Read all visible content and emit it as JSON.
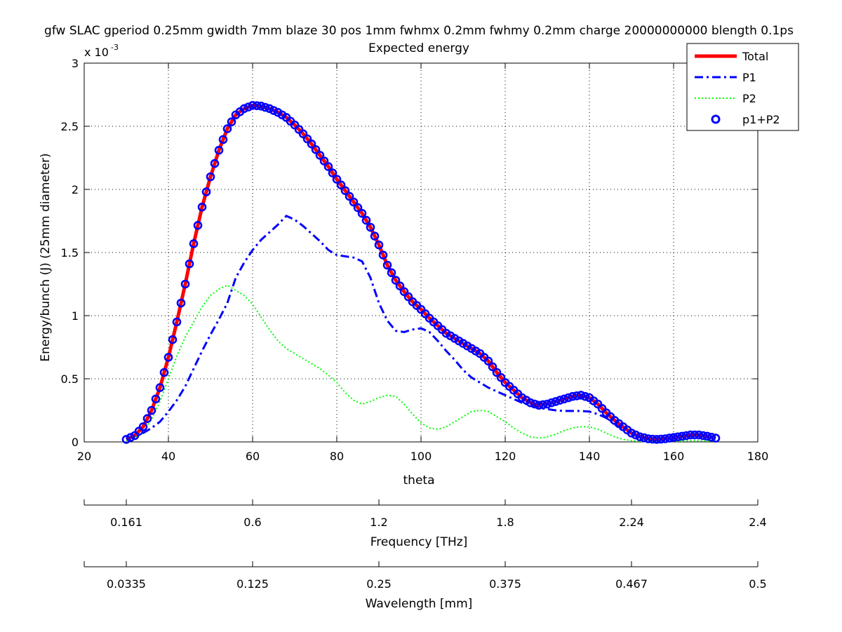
{
  "chart_data": {
    "type": "line",
    "title": "gfw SLAC gperiod 0.25mm gwidth 7mm blaze 30 pos 1mm fwhmx 0.2mm fwhmy 0.2mm charge 20000000000 blength 0.1ps",
    "subtitle": "Expected energy",
    "xlabel": "theta",
    "ylabel": "Energy/bunch (J) (25mm diameter)",
    "y_exponent": "x 10",
    "y_exponent_power": "-3",
    "xlim": [
      20,
      180
    ],
    "ylim": [
      0,
      0.003
    ],
    "grid": true,
    "legend_position": "top-right",
    "x_ticks": [
      "20",
      "40",
      "60",
      "80",
      "100",
      "120",
      "140",
      "160",
      "180"
    ],
    "y_ticks": [
      "0",
      "0.5",
      "1",
      "1.5",
      "2",
      "2.5",
      "3"
    ],
    "secondary_axes": [
      {
        "label": "Frequency [THz]",
        "tick_theta": [
          30,
          60,
          90,
          120,
          150,
          180
        ],
        "tick_labels": [
          "0.161",
          "0.6",
          "1.2",
          "1.8",
          "2.24",
          "2.4"
        ]
      },
      {
        "label": "Wavelength [mm]",
        "tick_theta": [
          30,
          60,
          90,
          120,
          150,
          180
        ],
        "tick_labels": [
          "0.0335",
          "0.125",
          "0.25",
          "0.375",
          "0.467",
          "0.5"
        ]
      }
    ],
    "series": [
      {
        "name": "Total",
        "color": "#ff0000",
        "style": "solid",
        "points": [
          [
            30,
            0.02
          ],
          [
            32,
            0.05
          ],
          [
            34,
            0.12
          ],
          [
            36,
            0.25
          ],
          [
            38,
            0.43
          ],
          [
            40,
            0.67
          ],
          [
            42,
            0.95
          ],
          [
            44,
            1.25
          ],
          [
            46,
            1.57
          ],
          [
            48,
            1.86
          ],
          [
            50,
            2.1
          ],
          [
            52,
            2.31
          ],
          [
            54,
            2.48
          ],
          [
            56,
            2.59
          ],
          [
            58,
            2.64
          ],
          [
            60,
            2.665
          ],
          [
            62,
            2.66
          ],
          [
            64,
            2.64
          ],
          [
            66,
            2.61
          ],
          [
            68,
            2.57
          ],
          [
            70,
            2.51
          ],
          [
            72,
            2.44
          ],
          [
            74,
            2.36
          ],
          [
            76,
            2.27
          ],
          [
            78,
            2.18
          ],
          [
            80,
            2.08
          ],
          [
            82,
            1.99
          ],
          [
            84,
            1.9
          ],
          [
            86,
            1.81
          ],
          [
            88,
            1.7
          ],
          [
            90,
            1.56
          ],
          [
            92,
            1.4
          ],
          [
            94,
            1.28
          ],
          [
            96,
            1.19
          ],
          [
            98,
            1.11
          ],
          [
            100,
            1.05
          ],
          [
            102,
            0.98
          ],
          [
            104,
            0.92
          ],
          [
            106,
            0.86
          ],
          [
            108,
            0.82
          ],
          [
            110,
            0.78
          ],
          [
            112,
            0.74
          ],
          [
            114,
            0.7
          ],
          [
            116,
            0.64
          ],
          [
            118,
            0.55
          ],
          [
            120,
            0.47
          ],
          [
            122,
            0.41
          ],
          [
            124,
            0.35
          ],
          [
            126,
            0.31
          ],
          [
            128,
            0.29
          ],
          [
            130,
            0.3
          ],
          [
            132,
            0.32
          ],
          [
            134,
            0.34
          ],
          [
            136,
            0.36
          ],
          [
            138,
            0.37
          ],
          [
            140,
            0.35
          ],
          [
            142,
            0.3
          ],
          [
            144,
            0.23
          ],
          [
            146,
            0.17
          ],
          [
            148,
            0.12
          ],
          [
            150,
            0.07
          ],
          [
            152,
            0.04
          ],
          [
            154,
            0.025
          ],
          [
            156,
            0.02
          ],
          [
            158,
            0.025
          ],
          [
            160,
            0.035
          ],
          [
            162,
            0.045
          ],
          [
            164,
            0.055
          ],
          [
            166,
            0.055
          ],
          [
            168,
            0.045
          ],
          [
            170,
            0.03
          ]
        ]
      },
      {
        "name": "P1",
        "color": "#0000ff",
        "style": "dashdot",
        "points": [
          [
            30,
            0.02
          ],
          [
            32,
            0.04
          ],
          [
            34,
            0.07
          ],
          [
            36,
            0.11
          ],
          [
            38,
            0.16
          ],
          [
            40,
            0.24
          ],
          [
            42,
            0.33
          ],
          [
            44,
            0.44
          ],
          [
            46,
            0.58
          ],
          [
            48,
            0.72
          ],
          [
            50,
            0.85
          ],
          [
            52,
            0.97
          ],
          [
            54,
            1.1
          ],
          [
            56,
            1.3
          ],
          [
            58,
            1.42
          ],
          [
            60,
            1.52
          ],
          [
            62,
            1.6
          ],
          [
            64,
            1.66
          ],
          [
            66,
            1.72
          ],
          [
            68,
            1.79
          ],
          [
            70,
            1.76
          ],
          [
            72,
            1.71
          ],
          [
            74,
            1.65
          ],
          [
            76,
            1.59
          ],
          [
            78,
            1.52
          ],
          [
            80,
            1.48
          ],
          [
            82,
            1.47
          ],
          [
            84,
            1.46
          ],
          [
            86,
            1.43
          ],
          [
            88,
            1.3
          ],
          [
            90,
            1.1
          ],
          [
            92,
            0.96
          ],
          [
            94,
            0.88
          ],
          [
            96,
            0.87
          ],
          [
            98,
            0.89
          ],
          [
            100,
            0.9
          ],
          [
            102,
            0.87
          ],
          [
            104,
            0.8
          ],
          [
            106,
            0.72
          ],
          [
            108,
            0.65
          ],
          [
            110,
            0.57
          ],
          [
            112,
            0.51
          ],
          [
            114,
            0.47
          ],
          [
            116,
            0.43
          ],
          [
            118,
            0.4
          ],
          [
            120,
            0.37
          ],
          [
            122,
            0.34
          ],
          [
            124,
            0.31
          ],
          [
            126,
            0.29
          ],
          [
            128,
            0.27
          ],
          [
            130,
            0.26
          ],
          [
            132,
            0.25
          ],
          [
            134,
            0.245
          ],
          [
            136,
            0.245
          ],
          [
            138,
            0.245
          ],
          [
            140,
            0.24
          ],
          [
            142,
            0.22
          ],
          [
            144,
            0.19
          ],
          [
            146,
            0.14
          ],
          [
            148,
            0.1
          ]
        ]
      },
      {
        "name": "P2",
        "color": "#00ff00",
        "style": "dotted",
        "points": [
          [
            30,
            0.01
          ],
          [
            32,
            0.03
          ],
          [
            34,
            0.08
          ],
          [
            36,
            0.18
          ],
          [
            38,
            0.32
          ],
          [
            40,
            0.5
          ],
          [
            42,
            0.68
          ],
          [
            44,
            0.83
          ],
          [
            46,
            0.95
          ],
          [
            48,
            1.07
          ],
          [
            50,
            1.16
          ],
          [
            52,
            1.21
          ],
          [
            54,
            1.24
          ],
          [
            56,
            1.2
          ],
          [
            58,
            1.16
          ],
          [
            60,
            1.09
          ],
          [
            62,
            0.99
          ],
          [
            64,
            0.89
          ],
          [
            66,
            0.8
          ],
          [
            68,
            0.74
          ],
          [
            70,
            0.7
          ],
          [
            72,
            0.66
          ],
          [
            74,
            0.62
          ],
          [
            76,
            0.58
          ],
          [
            78,
            0.53
          ],
          [
            80,
            0.47
          ],
          [
            82,
            0.39
          ],
          [
            84,
            0.33
          ],
          [
            86,
            0.3
          ],
          [
            88,
            0.32
          ],
          [
            90,
            0.35
          ],
          [
            92,
            0.37
          ],
          [
            94,
            0.36
          ],
          [
            96,
            0.3
          ],
          [
            98,
            0.22
          ],
          [
            100,
            0.15
          ],
          [
            102,
            0.11
          ],
          [
            104,
            0.1
          ],
          [
            106,
            0.12
          ],
          [
            108,
            0.16
          ],
          [
            110,
            0.2
          ],
          [
            112,
            0.24
          ],
          [
            114,
            0.25
          ],
          [
            116,
            0.24
          ],
          [
            118,
            0.2
          ],
          [
            120,
            0.16
          ],
          [
            122,
            0.11
          ],
          [
            124,
            0.07
          ],
          [
            126,
            0.04
          ],
          [
            128,
            0.03
          ],
          [
            130,
            0.04
          ],
          [
            132,
            0.06
          ],
          [
            134,
            0.09
          ],
          [
            136,
            0.11
          ],
          [
            138,
            0.12
          ],
          [
            140,
            0.12
          ],
          [
            142,
            0.1
          ],
          [
            144,
            0.07
          ],
          [
            146,
            0.04
          ],
          [
            148,
            0.02
          ],
          [
            150,
            0.01
          ],
          [
            152,
            0.005
          ],
          [
            156,
            0.003
          ],
          [
            160,
            0.005
          ],
          [
            164,
            0.01
          ],
          [
            168,
            0.008
          ],
          [
            170,
            0.005
          ]
        ]
      },
      {
        "name": "p1+P2",
        "color": "#0000ff",
        "style": "circles",
        "points_from": "Total"
      }
    ]
  }
}
